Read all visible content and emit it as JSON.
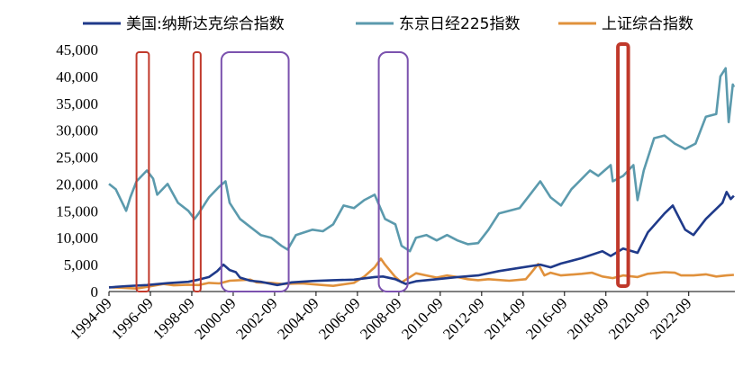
{
  "legend": [
    {
      "label": "美国:纳斯达克综合指数",
      "color": "#1f3a8a"
    },
    {
      "label": "东京日经225指数",
      "color": "#5b9aad"
    },
    {
      "label": "上证综合指数",
      "color": "#e0913c"
    }
  ],
  "highlight_colors": {
    "red": "#c0392b",
    "purple": "#7b52ae"
  },
  "chart_data": {
    "type": "line",
    "ylim": [
      0,
      45000
    ],
    "yticks": [
      0,
      5000,
      10000,
      15000,
      20000,
      25000,
      30000,
      35000,
      40000,
      45000
    ],
    "ytick_labels": [
      "0",
      "5,000",
      "10,000",
      "15,000",
      "20,000",
      "25,000",
      "30,000",
      "35,000",
      "40,000",
      "45,000"
    ],
    "xlim": [
      1994.67,
      2024.9
    ],
    "xticks": [
      1994.67,
      1996.67,
      1998.67,
      2000.67,
      2002.67,
      2004.67,
      2006.67,
      2008.67,
      2010.67,
      2012.67,
      2014.67,
      2016.67,
      2018.67,
      2020.67,
      2022.67
    ],
    "xtick_labels": [
      "1994-09",
      "1996-09",
      "1998-09",
      "2000-09",
      "2002-09",
      "2004-09",
      "2006-09",
      "2008-09",
      "2010-09",
      "2012-09",
      "2014-09",
      "2016-09",
      "2018-09",
      "2020-09",
      "2022-09"
    ],
    "series": [
      {
        "name": "美国:纳斯达克综合指数",
        "color": "#1f3a8a",
        "points": [
          [
            1994.67,
            770
          ],
          [
            1995.5,
            1000
          ],
          [
            1996.5,
            1200
          ],
          [
            1997.5,
            1550
          ],
          [
            1998.5,
            1800
          ],
          [
            1999.0,
            2200
          ],
          [
            1999.5,
            2700
          ],
          [
            1999.9,
            3800
          ],
          [
            2000.2,
            5000
          ],
          [
            2000.5,
            4000
          ],
          [
            2000.8,
            3600
          ],
          [
            2001.0,
            2600
          ],
          [
            2001.5,
            2000
          ],
          [
            2002.0,
            1800
          ],
          [
            2002.8,
            1200
          ],
          [
            2003.5,
            1700
          ],
          [
            2004.5,
            1950
          ],
          [
            2005.5,
            2100
          ],
          [
            2006.5,
            2200
          ],
          [
            2007.5,
            2700
          ],
          [
            2007.9,
            2800
          ],
          [
            2008.5,
            2300
          ],
          [
            2009.0,
            1400
          ],
          [
            2009.5,
            1900
          ],
          [
            2010.5,
            2300
          ],
          [
            2011.5,
            2700
          ],
          [
            2012.5,
            3000
          ],
          [
            2013.5,
            3800
          ],
          [
            2014.5,
            4400
          ],
          [
            2015.5,
            5000
          ],
          [
            2016.0,
            4500
          ],
          [
            2016.5,
            5200
          ],
          [
            2017.5,
            6200
          ],
          [
            2018.5,
            7500
          ],
          [
            2018.9,
            6600
          ],
          [
            2019.5,
            8000
          ],
          [
            2020.2,
            7200
          ],
          [
            2020.7,
            11000
          ],
          [
            2021.5,
            14500
          ],
          [
            2021.9,
            16000
          ],
          [
            2022.5,
            11500
          ],
          [
            2022.9,
            10500
          ],
          [
            2023.5,
            13500
          ],
          [
            2024.3,
            16500
          ],
          [
            2024.5,
            18500
          ],
          [
            2024.7,
            17200
          ],
          [
            2024.85,
            17800
          ]
        ]
      },
      {
        "name": "东京日经225指数",
        "color": "#5b9aad",
        "points": [
          [
            1994.67,
            20000
          ],
          [
            1995.0,
            19000
          ],
          [
            1995.5,
            15000
          ],
          [
            1995.7,
            17500
          ],
          [
            1996.0,
            20500
          ],
          [
            1996.5,
            22500
          ],
          [
            1996.8,
            21000
          ],
          [
            1997.0,
            18000
          ],
          [
            1997.5,
            20000
          ],
          [
            1998.0,
            16500
          ],
          [
            1998.5,
            15000
          ],
          [
            1998.8,
            13500
          ],
          [
            1999.0,
            14500
          ],
          [
            1999.5,
            17500
          ],
          [
            2000.0,
            19500
          ],
          [
            2000.3,
            20500
          ],
          [
            2000.5,
            16500
          ],
          [
            2001.0,
            13500
          ],
          [
            2001.5,
            12000
          ],
          [
            2002.0,
            10500
          ],
          [
            2002.5,
            10000
          ],
          [
            2003.0,
            8500
          ],
          [
            2003.3,
            7800
          ],
          [
            2003.7,
            10500
          ],
          [
            2004.5,
            11500
          ],
          [
            2005.0,
            11200
          ],
          [
            2005.5,
            12500
          ],
          [
            2006.0,
            16000
          ],
          [
            2006.5,
            15500
          ],
          [
            2007.0,
            17000
          ],
          [
            2007.5,
            18000
          ],
          [
            2008.0,
            13500
          ],
          [
            2008.5,
            12500
          ],
          [
            2008.8,
            8500
          ],
          [
            2009.2,
            7500
          ],
          [
            2009.5,
            10000
          ],
          [
            2010.0,
            10500
          ],
          [
            2010.5,
            9500
          ],
          [
            2011.0,
            10500
          ],
          [
            2011.5,
            9500
          ],
          [
            2012.0,
            8800
          ],
          [
            2012.5,
            9000
          ],
          [
            2013.0,
            11500
          ],
          [
            2013.5,
            14500
          ],
          [
            2014.5,
            15500
          ],
          [
            2015.0,
            18000
          ],
          [
            2015.5,
            20500
          ],
          [
            2016.0,
            17500
          ],
          [
            2016.5,
            16000
          ],
          [
            2017.0,
            19000
          ],
          [
            2017.9,
            22500
          ],
          [
            2018.3,
            21500
          ],
          [
            2018.9,
            23500
          ],
          [
            2019.0,
            20500
          ],
          [
            2019.5,
            21500
          ],
          [
            2020.0,
            23500
          ],
          [
            2020.2,
            17000
          ],
          [
            2020.5,
            22500
          ],
          [
            2021.0,
            28500
          ],
          [
            2021.5,
            29000
          ],
          [
            2022.0,
            27500
          ],
          [
            2022.5,
            26500
          ],
          [
            2023.0,
            27500
          ],
          [
            2023.5,
            32500
          ],
          [
            2024.0,
            33000
          ],
          [
            2024.2,
            40000
          ],
          [
            2024.45,
            41500
          ],
          [
            2024.6,
            31500
          ],
          [
            2024.8,
            38500
          ],
          [
            2024.85,
            38000
          ]
        ]
      },
      {
        "name": "上证综合指数",
        "color": "#e0913c",
        "points": [
          [
            1994.67,
            800
          ],
          [
            1995.5,
            650
          ],
          [
            1996.0,
            550
          ],
          [
            1996.5,
            850
          ],
          [
            1997.3,
            1400
          ],
          [
            1997.8,
            1150
          ],
          [
            1998.5,
            1250
          ],
          [
            1999.0,
            1200
          ],
          [
            1999.5,
            1600
          ],
          [
            2000.0,
            1500
          ],
          [
            2000.5,
            2000
          ],
          [
            2001.5,
            2200
          ],
          [
            2001.8,
            1700
          ],
          [
            2002.5,
            1600
          ],
          [
            2003.0,
            1400
          ],
          [
            2004.0,
            1500
          ],
          [
            2005.0,
            1200
          ],
          [
            2005.5,
            1050
          ],
          [
            2006.5,
            1600
          ],
          [
            2007.0,
            2800
          ],
          [
            2007.5,
            4500
          ],
          [
            2007.8,
            6100
          ],
          [
            2008.0,
            5000
          ],
          [
            2008.5,
            2700
          ],
          [
            2008.8,
            1700
          ],
          [
            2009.5,
            3400
          ],
          [
            2010.0,
            3000
          ],
          [
            2010.5,
            2600
          ],
          [
            2011.0,
            3000
          ],
          [
            2011.5,
            2700
          ],
          [
            2012.0,
            2300
          ],
          [
            2012.5,
            2100
          ],
          [
            2013.0,
            2300
          ],
          [
            2014.0,
            2000
          ],
          [
            2014.8,
            2300
          ],
          [
            2015.0,
            3200
          ],
          [
            2015.4,
            5100
          ],
          [
            2015.7,
            3000
          ],
          [
            2016.0,
            3500
          ],
          [
            2016.5,
            3000
          ],
          [
            2017.5,
            3300
          ],
          [
            2018.0,
            3500
          ],
          [
            2018.5,
            2800
          ],
          [
            2019.0,
            2500
          ],
          [
            2019.5,
            3000
          ],
          [
            2020.2,
            2700
          ],
          [
            2020.7,
            3300
          ],
          [
            2021.5,
            3600
          ],
          [
            2022.0,
            3500
          ],
          [
            2022.3,
            3000
          ],
          [
            2022.9,
            3000
          ],
          [
            2023.5,
            3200
          ],
          [
            2024.0,
            2800
          ],
          [
            2024.5,
            3000
          ],
          [
            2024.85,
            3100
          ]
        ]
      }
    ],
    "highlights": [
      {
        "color": "red",
        "x0": 1996.0,
        "x1": 1996.6,
        "y0": 0,
        "y1": 44500,
        "stroke_w": 2
      },
      {
        "color": "red",
        "x0": 1998.75,
        "x1": 1999.1,
        "y0": 0,
        "y1": 44500,
        "stroke_w": 2
      },
      {
        "color": "purple",
        "x0": 2000.1,
        "x1": 2003.35,
        "y0": 0,
        "y1": 44500,
        "stroke_w": 2
      },
      {
        "color": "purple",
        "x0": 2007.7,
        "x1": 2009.1,
        "y0": 0,
        "y1": 44500,
        "stroke_w": 2
      },
      {
        "color": "red",
        "x0": 2019.25,
        "x1": 2019.75,
        "y0": 1000,
        "y1": 46000,
        "stroke_w": 4
      }
    ]
  }
}
